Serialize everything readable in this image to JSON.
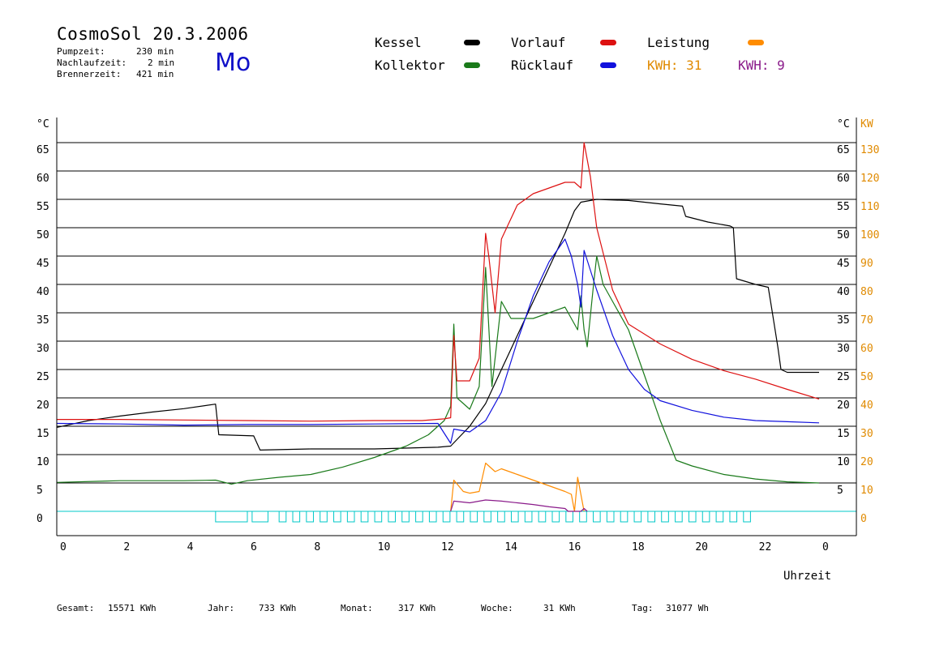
{
  "header": {
    "title": "CosmoSol 20.3.2006",
    "info": [
      {
        "label": "Pumpzeit:",
        "value": "230 min"
      },
      {
        "label": "Nachlaufzeit:",
        "value": "2 min"
      },
      {
        "label": "Brennerzeit:",
        "value": "421 min"
      }
    ],
    "weekday": "Mo"
  },
  "legend": {
    "items": [
      {
        "label": "Kessel",
        "color": "#000000"
      },
      {
        "label": "Kollektor",
        "color": "#1a7a1a"
      },
      {
        "label": "Vorlauf",
        "color": "#dd1111"
      },
      {
        "label": "Rücklauf",
        "color": "#1111dd"
      },
      {
        "label": "Leistung",
        "color": "#ff8c00"
      }
    ],
    "kwh": [
      {
        "text": "KWH: 31",
        "color": "#e08a00"
      },
      {
        "text": "KWH: 9",
        "color": "#8a1a8a"
      }
    ]
  },
  "chart_data": {
    "type": "line",
    "xlabel": "Uhrzeit",
    "x_ticks": [
      "0",
      "2",
      "4",
      "6",
      "8",
      "10",
      "12",
      "14",
      "16",
      "18",
      "20",
      "22",
      "0"
    ],
    "xlim": [
      0,
      24
    ],
    "ylabel_left": "°C",
    "ylabel_right": "°C",
    "ylabel_power": "KW",
    "ylim": [
      0,
      65
    ],
    "y_ticks_left": [
      "0",
      "5",
      "10",
      "15",
      "20",
      "25",
      "30",
      "35",
      "40",
      "45",
      "50",
      "55",
      "60",
      "65"
    ],
    "y_ticks_right": [
      "5",
      "10",
      "15",
      "20",
      "25",
      "30",
      "35",
      "40",
      "45",
      "50",
      "55",
      "60",
      "65"
    ],
    "power_ticks": [
      "0",
      "10",
      "20",
      "30",
      "40",
      "50",
      "60",
      "70",
      "80",
      "90",
      "100",
      "110",
      "120",
      "130"
    ],
    "grid": true,
    "series": [
      {
        "name": "Kessel",
        "color": "#000000",
        "points": [
          [
            0,
            14.8
          ],
          [
            1,
            16
          ],
          [
            2,
            16.8
          ],
          [
            3,
            17.5
          ],
          [
            4,
            18.1
          ],
          [
            5,
            18.9
          ],
          [
            5.1,
            13.5
          ],
          [
            6.2,
            13.3
          ],
          [
            6.4,
            10.8
          ],
          [
            8,
            11
          ],
          [
            10,
            11
          ],
          [
            12,
            11.3
          ],
          [
            12.4,
            11.5
          ],
          [
            13,
            15
          ],
          [
            13.5,
            19
          ],
          [
            14,
            25
          ],
          [
            14.5,
            31
          ],
          [
            15,
            37
          ],
          [
            15.5,
            43
          ],
          [
            16,
            49
          ],
          [
            16.3,
            53
          ],
          [
            16.5,
            54.5
          ],
          [
            17,
            55
          ],
          [
            18,
            54.8
          ],
          [
            19,
            54.2
          ],
          [
            19.7,
            53.8
          ],
          [
            19.8,
            52
          ],
          [
            20.5,
            51
          ],
          [
            21.2,
            50.3
          ],
          [
            21.3,
            50
          ],
          [
            21.4,
            41
          ],
          [
            22,
            40
          ],
          [
            22.4,
            39.5
          ],
          [
            22.5,
            36
          ],
          [
            22.7,
            29
          ],
          [
            22.8,
            25
          ],
          [
            23,
            24.5
          ],
          [
            24,
            24.5
          ]
        ]
      },
      {
        "name": "Kollektor",
        "color": "#1a7a1a",
        "points": [
          [
            0,
            5.1
          ],
          [
            2,
            5.4
          ],
          [
            4,
            5.4
          ],
          [
            5,
            5.5
          ],
          [
            5.5,
            4.8
          ],
          [
            6,
            5.4
          ],
          [
            7,
            6
          ],
          [
            8,
            6.5
          ],
          [
            9,
            7.8
          ],
          [
            10,
            9.5
          ],
          [
            11,
            11.5
          ],
          [
            11.7,
            13.5
          ],
          [
            12.2,
            16
          ],
          [
            12.4,
            18.5
          ],
          [
            12.5,
            33
          ],
          [
            12.6,
            20
          ],
          [
            13,
            18
          ],
          [
            13.3,
            22
          ],
          [
            13.5,
            43
          ],
          [
            13.7,
            22
          ],
          [
            14,
            37
          ],
          [
            14.3,
            34
          ],
          [
            15,
            34
          ],
          [
            15.5,
            35
          ],
          [
            16,
            36
          ],
          [
            16.2,
            34
          ],
          [
            16.4,
            32
          ],
          [
            16.5,
            38
          ],
          [
            16.6,
            32
          ],
          [
            16.7,
            29
          ],
          [
            16.9,
            40
          ],
          [
            17,
            45
          ],
          [
            17.2,
            40
          ],
          [
            17.5,
            37
          ],
          [
            18,
            32
          ],
          [
            18.5,
            24
          ],
          [
            19,
            16
          ],
          [
            19.5,
            9
          ],
          [
            20,
            8
          ],
          [
            21,
            6.5
          ],
          [
            22,
            5.7
          ],
          [
            23,
            5.2
          ],
          [
            24,
            5
          ]
        ]
      },
      {
        "name": "Vorlauf",
        "color": "#dd1111",
        "points": [
          [
            0,
            16.2
          ],
          [
            2,
            16.2
          ],
          [
            4,
            16.1
          ],
          [
            6,
            16
          ],
          [
            8,
            15.9
          ],
          [
            10,
            16
          ],
          [
            11.5,
            16
          ],
          [
            12.2,
            16.3
          ],
          [
            12.4,
            16.5
          ],
          [
            12.5,
            31
          ],
          [
            12.6,
            23
          ],
          [
            13,
            23
          ],
          [
            13.3,
            27
          ],
          [
            13.5,
            49
          ],
          [
            13.6,
            45
          ],
          [
            13.8,
            35
          ],
          [
            14,
            48
          ],
          [
            14.5,
            54
          ],
          [
            15,
            56
          ],
          [
            15.5,
            57
          ],
          [
            16,
            58
          ],
          [
            16.3,
            58
          ],
          [
            16.5,
            57
          ],
          [
            16.6,
            65
          ],
          [
            16.8,
            59
          ],
          [
            17,
            50
          ],
          [
            17.5,
            39
          ],
          [
            18,
            33
          ],
          [
            19,
            29.5
          ],
          [
            20,
            26.8
          ],
          [
            21,
            24.8
          ],
          [
            22,
            23.3
          ],
          [
            23,
            21.5
          ],
          [
            24,
            19.8
          ]
        ]
      },
      {
        "name": "Rücklauf",
        "color": "#1111dd",
        "points": [
          [
            0,
            15.5
          ],
          [
            2,
            15.4
          ],
          [
            4,
            15.2
          ],
          [
            6,
            15.3
          ],
          [
            8,
            15.3
          ],
          [
            10,
            15.4
          ],
          [
            12,
            15.5
          ],
          [
            12.4,
            12
          ],
          [
            12.5,
            14.5
          ],
          [
            13,
            14
          ],
          [
            13.5,
            16
          ],
          [
            14,
            21
          ],
          [
            14.5,
            30
          ],
          [
            15,
            38
          ],
          [
            15.5,
            44
          ],
          [
            16,
            48
          ],
          [
            16.2,
            45
          ],
          [
            16.4,
            40
          ],
          [
            16.5,
            36
          ],
          [
            16.6,
            46
          ],
          [
            17,
            39
          ],
          [
            17.5,
            31
          ],
          [
            18,
            25
          ],
          [
            18.5,
            21.5
          ],
          [
            19,
            19.5
          ],
          [
            20,
            17.8
          ],
          [
            21,
            16.6
          ],
          [
            22,
            16
          ],
          [
            23,
            15.8
          ],
          [
            24,
            15.6
          ]
        ]
      },
      {
        "name": "Leistung",
        "color": "#ff8c00",
        "points": [
          [
            12.4,
            0
          ],
          [
            12.5,
            5.5
          ],
          [
            12.8,
            3.5
          ],
          [
            13,
            3.2
          ],
          [
            13.3,
            3.5
          ],
          [
            13.5,
            8.5
          ],
          [
            13.8,
            7
          ],
          [
            14,
            7.5
          ],
          [
            14.5,
            6.5
          ],
          [
            15,
            5.5
          ],
          [
            15.5,
            4.5
          ],
          [
            16,
            3.5
          ],
          [
            16.2,
            3
          ],
          [
            16.3,
            0
          ],
          [
            16.4,
            6
          ],
          [
            16.6,
            0
          ]
        ]
      },
      {
        "name": "",
        "color": "#8a1a8a",
        "points": [
          [
            12.4,
            0
          ],
          [
            12.5,
            1.8
          ],
          [
            13,
            1.5
          ],
          [
            13.5,
            2
          ],
          [
            14,
            1.8
          ],
          [
            14.5,
            1.5
          ],
          [
            15,
            1.2
          ],
          [
            15.5,
            0.8
          ],
          [
            16,
            0.5
          ],
          [
            16.1,
            0
          ],
          [
            16.5,
            0
          ],
          [
            16.6,
            0.5
          ],
          [
            16.7,
            0
          ]
        ]
      }
    ]
  },
  "bottom_axis_label": "Uhrzeit",
  "stats": [
    {
      "label": "Gesamt:",
      "value": "15571 KWh"
    },
    {
      "label": "Jahr:",
      "value": "733 KWh"
    },
    {
      "label": "Monat:",
      "value": "317 KWh"
    },
    {
      "label": "Woche:",
      "value": "31 KWh"
    },
    {
      "label": "Tag:",
      "value": "31077 Wh"
    }
  ]
}
